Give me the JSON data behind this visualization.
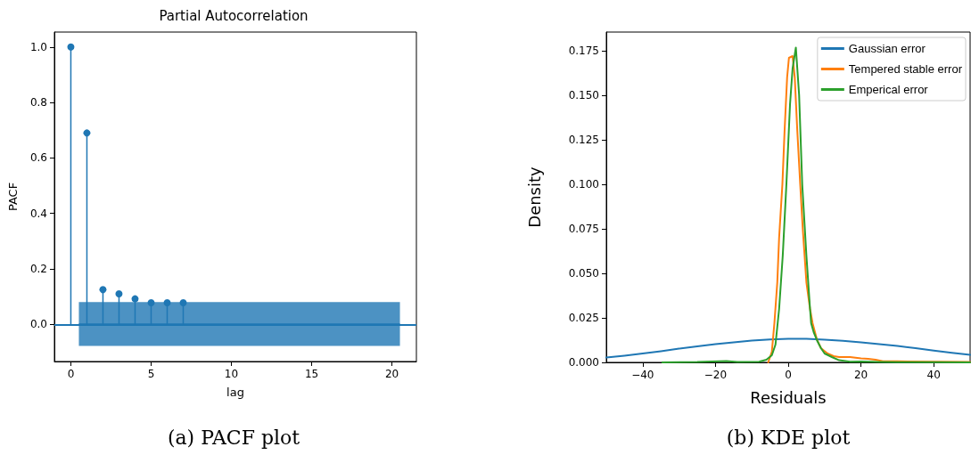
{
  "chart_data": [
    {
      "type": "lollipop",
      "title": "Partial Autocorrelation",
      "xlabel": "lag",
      "ylabel": "PACF",
      "annotations": [
        "(a) PACF plot"
      ],
      "xlim": [
        -1.025,
        21.525
      ],
      "xticks": [
        0,
        5,
        10,
        15,
        20
      ],
      "ylim": [
        -0.134,
        1.054
      ],
      "yticks": [
        {
          "value": 0,
          "label": "0.0"
        },
        {
          "value": 0.2,
          "label": "0.2"
        },
        {
          "value": 0.4,
          "label": "0.4"
        },
        {
          "value": 0.6,
          "label": "0.6"
        },
        {
          "value": 0.8,
          "label": "0.8"
        },
        {
          "value": 1,
          "label": "1.0"
        }
      ],
      "grid": false,
      "legend": false,
      "marker": "circle",
      "ref_lines": [
        {
          "axis": "y",
          "value": 0,
          "color": "#1f77b4"
        }
      ],
      "series": [
        {
          "color": "#1f77b4",
          "x": [
            0,
            1,
            2,
            3,
            4,
            5,
            6,
            7
          ],
          "values": [
            1.0,
            0.69,
            0.125,
            0.11,
            0.092,
            0.078,
            0.078,
            0.078
          ]
        },
        {
          "type": "line",
          "marker": "none",
          "color": "#1f77b4",
          "x": [
            0.5,
            20.5
          ],
          "values": [
            0,
            0
          ],
          "lower": [
            -0.078,
            -0.078
          ],
          "upper": [
            0.08,
            0.08
          ]
        }
      ]
    },
    {
      "type": "line",
      "xlabel": "Residuals",
      "ylabel": "Density",
      "annotations": [
        "(b) KDE plot"
      ],
      "xlim": [
        -50,
        50
      ],
      "xticks": [
        {
          "value": -40,
          "label": "−40"
        },
        {
          "value": -20,
          "label": "−20"
        },
        0,
        20,
        40
      ],
      "ylim": [
        0,
        0.1855
      ],
      "yticks": [
        {
          "value": 0,
          "label": "0.000"
        },
        {
          "value": 0.025,
          "label": "0.025"
        },
        {
          "value": 0.05,
          "label": "0.050"
        },
        {
          "value": 0.075,
          "label": "0.075"
        },
        {
          "value": 0.1,
          "label": "0.100"
        },
        {
          "value": 0.125,
          "label": "0.125"
        },
        {
          "value": 0.15,
          "label": "0.150"
        },
        {
          "value": 0.175,
          "label": "0.175"
        }
      ],
      "grid": false,
      "legend": "top right",
      "marker": "none",
      "line_style": "solid",
      "series": [
        {
          "name": "Gaussian error",
          "color": "#1f77b4",
          "x": [
            -50,
            -45,
            -40,
            -35,
            -30,
            -25,
            -20,
            -15,
            -10,
            -5,
            0,
            5,
            10,
            15,
            20,
            25,
            30,
            35,
            40,
            45,
            50
          ],
          "values": [
            0.0028,
            0.0038,
            0.005,
            0.0063,
            0.0077,
            0.009,
            0.0102,
            0.0113,
            0.0122,
            0.0129,
            0.0133,
            0.0132,
            0.0128,
            0.0121,
            0.0112,
            0.0103,
            0.0092,
            0.008,
            0.0066,
            0.0054,
            0.0043
          ]
        },
        {
          "name": "Tempered stable error",
          "color": "#ff7f0e",
          "x": [
            -5.5,
            -4.5,
            -3.8,
            -3,
            -2.5,
            -1.6,
            -1,
            -0.3,
            0.2,
            1.2,
            1.8,
            2.5,
            3.3,
            4,
            5,
            6,
            6.7,
            7.9,
            9,
            10.8,
            12.5,
            14,
            17,
            20,
            22,
            24,
            26,
            30,
            40,
            50
          ],
          "values": [
            0,
            0.006,
            0.022,
            0.045,
            0.07,
            0.1,
            0.13,
            0.16,
            0.171,
            0.172,
            0.16,
            0.13,
            0.1,
            0.075,
            0.045,
            0.03,
            0.022,
            0.0128,
            0.008,
            0.005,
            0.0035,
            0.003,
            0.003,
            0.0022,
            0.002,
            0.0015,
            0.0006,
            0.0006,
            0.0004,
            0.0002
          ]
        },
        {
          "name": "Emperical error",
          "color": "#2ca02c",
          "x": [
            -34.6,
            -25,
            -17,
            -14,
            -8,
            -6,
            -4.5,
            -3.5,
            -2.5,
            -1.5,
            -0.5,
            0.5,
            1.2,
            2.1,
            3,
            3.85,
            5,
            6,
            6.3,
            7,
            8,
            9,
            10,
            12,
            14,
            17,
            20,
            25,
            30,
            40,
            50
          ],
          "values": [
            0,
            0.0002,
            0.0008,
            0.0003,
            0.0004,
            0.0015,
            0.004,
            0.01,
            0.03,
            0.06,
            0.1,
            0.145,
            0.165,
            0.1768,
            0.15,
            0.1,
            0.06,
            0.03,
            0.022,
            0.017,
            0.012,
            0.008,
            0.005,
            0.003,
            0.0012,
            0.0004,
            0.0005,
            0.0003,
            0.0001,
            0.0001,
            0
          ]
        }
      ]
    }
  ]
}
